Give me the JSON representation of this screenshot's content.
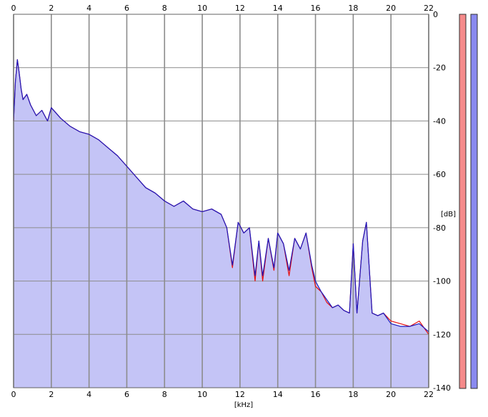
{
  "chart_data": {
    "type": "area",
    "xlabel": "[kHz]",
    "ylabel": "[dB]",
    "xlim": [
      0,
      22
    ],
    "ylim": [
      -140,
      0
    ],
    "x_ticks": [
      "0",
      "2",
      "4",
      "6",
      "8",
      "10",
      "12",
      "14",
      "16",
      "18",
      "20",
      "22"
    ],
    "y_ticks": [
      "0",
      "-20",
      "-40",
      "-60",
      "-80",
      "-100",
      "-120",
      "-140"
    ],
    "grid": true,
    "colors": {
      "fill": "#c4c4f6",
      "grid": "#8c8c8c",
      "left_channel": "#e81010",
      "right_channel": "#1818c0",
      "meter_left": "#f58a8a",
      "meter_right": "#8a8af0"
    },
    "series": [
      {
        "color": "#e81010",
        "x": [
          0.0,
          0.1,
          0.2,
          0.3,
          0.4,
          0.5,
          0.7,
          0.9,
          1.2,
          1.5,
          1.8,
          2.0,
          2.5,
          3.0,
          3.5,
          4.0,
          4.5,
          5.0,
          5.5,
          6.0,
          6.5,
          7.0,
          7.5,
          8.0,
          8.5,
          9.0,
          9.5,
          10.0,
          10.5,
          11.0,
          11.3,
          11.6,
          11.9,
          12.2,
          12.5,
          12.8,
          13.0,
          13.2,
          13.5,
          13.8,
          14.0,
          14.3,
          14.6,
          14.9,
          15.2,
          15.5,
          15.8,
          16.0,
          16.3,
          16.6,
          16.9,
          17.2,
          17.5,
          17.8,
          18.0,
          18.2,
          18.5,
          18.7,
          19.0,
          19.3,
          19.6,
          20.0,
          20.5,
          21.0,
          21.5,
          22.0
        ],
        "values": [
          -40,
          -25,
          -17,
          -22,
          -28,
          -32,
          -30,
          -34,
          -38,
          -36,
          -40,
          -35,
          -39,
          -42,
          -44,
          -45,
          -47,
          -50,
          -53,
          -57,
          -61,
          -65,
          -67,
          -70,
          -72,
          -70,
          -73,
          -74,
          -73,
          -75,
          -80,
          -95,
          -78,
          -82,
          -80,
          -100,
          -85,
          -100,
          -84,
          -96,
          -82,
          -86,
          -98,
          -84,
          -88,
          -82,
          -95,
          -102,
          -104,
          -108,
          -110,
          -109,
          -111,
          -112,
          -86,
          -112,
          -85,
          -78,
          -112,
          -113,
          -112,
          -115,
          -116,
          -117,
          -115,
          -120
        ]
      },
      {
        "color": "#1818c0",
        "x": [
          0.0,
          0.1,
          0.2,
          0.3,
          0.4,
          0.5,
          0.7,
          0.9,
          1.2,
          1.5,
          1.8,
          2.0,
          2.5,
          3.0,
          3.5,
          4.0,
          4.5,
          5.0,
          5.5,
          6.0,
          6.5,
          7.0,
          7.5,
          8.0,
          8.5,
          9.0,
          9.5,
          10.0,
          10.5,
          11.0,
          11.3,
          11.6,
          11.9,
          12.2,
          12.5,
          12.8,
          13.0,
          13.2,
          13.5,
          13.8,
          14.0,
          14.3,
          14.6,
          14.9,
          15.2,
          15.5,
          15.8,
          16.0,
          16.3,
          16.6,
          16.9,
          17.2,
          17.5,
          17.8,
          18.0,
          18.2,
          18.5,
          18.7,
          19.0,
          19.3,
          19.6,
          20.0,
          20.5,
          21.0,
          21.5,
          22.0
        ],
        "values": [
          -40,
          -25,
          -17,
          -22,
          -28,
          -32,
          -30,
          -34,
          -38,
          -36,
          -40,
          -35,
          -39,
          -42,
          -44,
          -45,
          -47,
          -50,
          -53,
          -57,
          -61,
          -65,
          -67,
          -70,
          -72,
          -70,
          -73,
          -74,
          -73,
          -75,
          -80,
          -94,
          -78,
          -82,
          -80,
          -98,
          -85,
          -98,
          -84,
          -95,
          -82,
          -86,
          -96,
          -84,
          -88,
          -82,
          -94,
          -100,
          -104,
          -107,
          -110,
          -109,
          -111,
          -112,
          -86,
          -112,
          -85,
          -78,
          -112,
          -113,
          -112,
          -116,
          -117,
          -117,
          -116,
          -119
        ]
      }
    ]
  }
}
